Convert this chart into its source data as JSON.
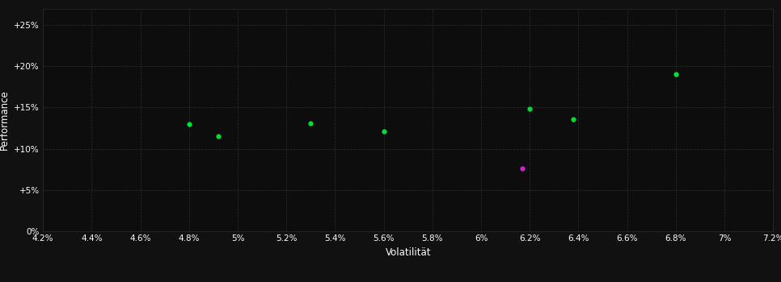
{
  "xlabel": "Volatilität",
  "ylabel": "Performance",
  "background_color": "#111111",
  "plot_bg_color": "#0d0d0d",
  "grid_color": "#2d2d2d",
  "text_color": "#ffffff",
  "xlim": [
    0.042,
    0.072
  ],
  "ylim": [
    0.0,
    0.27
  ],
  "xticks": [
    0.042,
    0.044,
    0.046,
    0.048,
    0.05,
    0.052,
    0.054,
    0.056,
    0.058,
    0.06,
    0.062,
    0.064,
    0.066,
    0.068,
    0.07,
    0.072
  ],
  "yticks": [
    0.0,
    0.05,
    0.1,
    0.15,
    0.2,
    0.25
  ],
  "ytick_labels": [
    "0%",
    "+5%",
    "+10%",
    "+15%",
    "+20%",
    "+25%"
  ],
  "points_green": [
    [
      0.048,
      0.13
    ],
    [
      0.0492,
      0.115
    ],
    [
      0.053,
      0.131
    ],
    [
      0.056,
      0.121
    ],
    [
      0.062,
      0.148
    ],
    [
      0.0638,
      0.136
    ],
    [
      0.068,
      0.19
    ]
  ],
  "points_magenta": [
    [
      0.0617,
      0.076
    ]
  ],
  "green_color": "#00dd33",
  "magenta_color": "#cc22cc",
  "marker_size": 4.5,
  "font_size_ticks": 7.5,
  "font_size_label": 8.5
}
